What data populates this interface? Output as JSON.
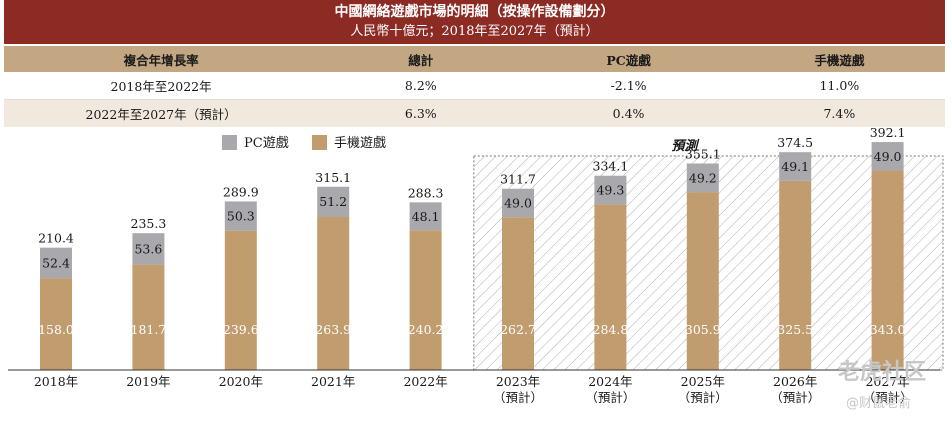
{
  "title": {
    "main": "中國網絡遊戲市場的明細（按操作設備劃分）",
    "sub": "人民幣十億元；2018年至2027年（預計）"
  },
  "cagr_table": {
    "headers": [
      "複合年增長率",
      "總計",
      "PC遊戲",
      "手機遊戲"
    ],
    "rows": [
      [
        "2018年至2022年",
        "8.2%",
        "-2.1%",
        "11.0%"
      ],
      [
        "2022年至2027年（預計）",
        "6.3%",
        "0.4%",
        "7.4%"
      ]
    ]
  },
  "watermark": {
    "line1": "老虎社区",
    "line2": "@财鼠老俞"
  },
  "colors": {
    "title_bg": "#8c2a24",
    "header_bg": "#c3a783",
    "pc": "#a9a9ad",
    "mobile": "#c09c6e",
    "forecast_hatch": "#9a9a9a"
  },
  "chart_data": {
    "type": "bar",
    "stacked": true,
    "title": "",
    "xlabel": "",
    "ylabel": "",
    "legend": [
      "PC遊戲",
      "手機遊戲"
    ],
    "legend_position": "top-left",
    "forecast_label": "預測",
    "categories": [
      [
        "2018年"
      ],
      [
        "2019年"
      ],
      [
        "2020年"
      ],
      [
        "2021年"
      ],
      [
        "2022年"
      ],
      [
        "2023年",
        "（預計）"
      ],
      [
        "2024年",
        "（預計）"
      ],
      [
        "2025年",
        "（預計）"
      ],
      [
        "2026年",
        "（預計）"
      ],
      [
        "2027年",
        "（預計）"
      ]
    ],
    "forecast_start_index": 5,
    "series": [
      {
        "name": "手機遊戲",
        "values": [
          158.0,
          181.7,
          239.6,
          263.9,
          240.2,
          262.7,
          284.8,
          305.9,
          325.5,
          343.0
        ]
      },
      {
        "name": "PC遊戲",
        "values": [
          52.4,
          53.6,
          50.3,
          51.2,
          48.1,
          49.0,
          49.3,
          49.2,
          49.1,
          49.0
        ]
      }
    ],
    "totals": [
      210.4,
      235.3,
      289.9,
      315.1,
      288.3,
      311.7,
      334.1,
      355.1,
      374.5,
      392.1
    ],
    "value_labels": {
      "mobile": [
        "158.0",
        "181.7",
        "239.6",
        "263.9",
        "240.2",
        "262.7",
        "284.8",
        "305.9",
        "325.5",
        "343.0"
      ],
      "pc": [
        "52.4",
        "53.6",
        "50.3",
        "51.2",
        "48.1",
        "49.0",
        "49.3",
        "49.2",
        "49.1",
        "49.0"
      ],
      "total": [
        "210.4",
        "235.3",
        "289.9",
        "315.1",
        "288.3",
        "311.7",
        "334.1",
        "355.1",
        "374.5",
        "392.1"
      ]
    },
    "ylim": [
      0,
      400
    ]
  }
}
